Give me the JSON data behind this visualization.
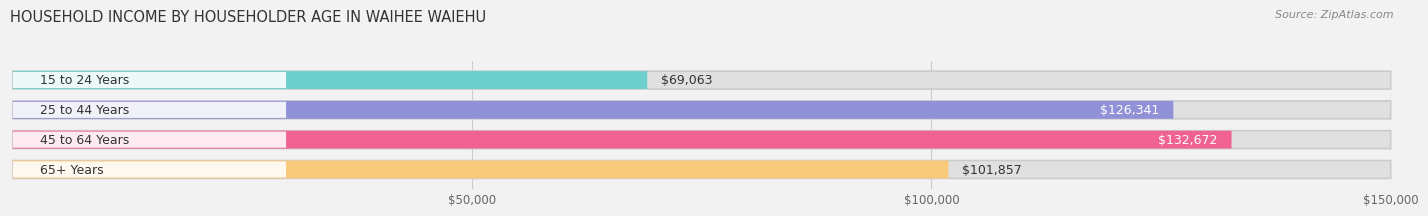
{
  "title": "HOUSEHOLD INCOME BY HOUSEHOLDER AGE IN WAIHEE WAIEHU",
  "source": "Source: ZipAtlas.com",
  "categories": [
    "15 to 24 Years",
    "25 to 44 Years",
    "45 to 64 Years",
    "65+ Years"
  ],
  "values": [
    69063,
    126341,
    132672,
    101857
  ],
  "bar_colors": [
    "#6dcfcb",
    "#9191d8",
    "#f06292",
    "#f9c97a"
  ],
  "value_labels": [
    "$69,063",
    "$126,341",
    "$132,672",
    "$101,857"
  ],
  "xlim": [
    0,
    150000
  ],
  "xticks": [
    50000,
    100000,
    150000
  ],
  "xtick_labels": [
    "$50,000",
    "$100,000",
    "$150,000"
  ],
  "background_color": "#f2f2f2",
  "bar_background_color": "#e0e0e0",
  "title_fontsize": 10.5,
  "source_fontsize": 8,
  "label_fontsize": 9,
  "tick_fontsize": 8.5
}
